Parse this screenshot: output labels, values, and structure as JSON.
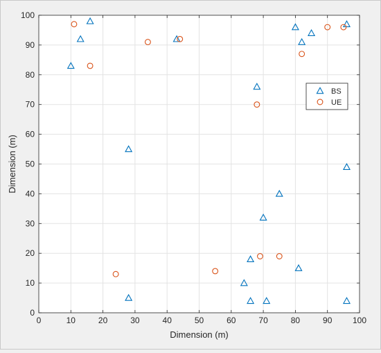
{
  "chart_data": {
    "type": "scatter",
    "xlabel": "Dimension (m)",
    "ylabel": "Dimension (m)",
    "xlim": [
      0,
      100
    ],
    "ylim": [
      0,
      100
    ],
    "xticks": [
      0,
      10,
      20,
      30,
      40,
      50,
      60,
      70,
      80,
      90,
      100
    ],
    "yticks": [
      0,
      10,
      20,
      30,
      40,
      50,
      60,
      70,
      80,
      90,
      100
    ],
    "grid": true,
    "legend_position": "top-right",
    "series": [
      {
        "name": "BS",
        "marker": "triangle",
        "color": "#0072BD",
        "x": [
          10,
          13,
          16,
          28,
          28,
          43,
          64,
          66,
          66,
          68,
          70,
          71,
          75,
          80,
          81,
          82,
          85,
          96,
          96,
          96
        ],
        "y": [
          83,
          92,
          98,
          55,
          5,
          92,
          10,
          18,
          4,
          76,
          32,
          4,
          40,
          96,
          15,
          91,
          94,
          97,
          49,
          4
        ]
      },
      {
        "name": "UE",
        "marker": "circle",
        "color": "#D95319",
        "x": [
          11,
          16,
          24,
          34,
          44,
          55,
          68,
          69,
          75,
          82,
          90,
          95
        ],
        "y": [
          97,
          83,
          13,
          91,
          92,
          14,
          70,
          19,
          19,
          87,
          96,
          96
        ]
      }
    ]
  }
}
